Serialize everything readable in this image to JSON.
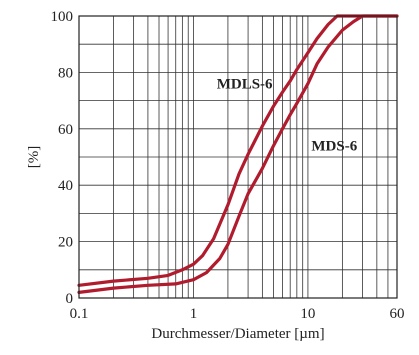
{
  "chart_data": {
    "type": "line",
    "title": "",
    "xlabel": "Durchmesser/Diameter  [µm]",
    "ylabel": "[%]",
    "x_scale": "log",
    "xlim": [
      0.1,
      60
    ],
    "ylim": [
      0,
      100
    ],
    "grid": true,
    "x_tick_labels": [
      {
        "value": 0.1,
        "label": "0.1"
      },
      {
        "value": 1,
        "label": "1"
      },
      {
        "value": 10,
        "label": "10"
      },
      {
        "value": 60,
        "label": "60"
      }
    ],
    "y_tick_labels": [
      {
        "value": 0,
        "label": "0"
      },
      {
        "value": 20,
        "label": "20"
      },
      {
        "value": 40,
        "label": "40"
      },
      {
        "value": 60,
        "label": "60"
      },
      {
        "value": 80,
        "label": "80"
      },
      {
        "value": 100,
        "label": "100"
      }
    ],
    "series": [
      {
        "name": "MDLS-6",
        "color": "#b01c2e",
        "points": [
          [
            0.1,
            4.5
          ],
          [
            0.2,
            6
          ],
          [
            0.4,
            7
          ],
          [
            0.6,
            8
          ],
          [
            0.8,
            10
          ],
          [
            1.0,
            12
          ],
          [
            1.2,
            15
          ],
          [
            1.5,
            21
          ],
          [
            2.0,
            33
          ],
          [
            2.5,
            44
          ],
          [
            3.0,
            51
          ],
          [
            4.0,
            61
          ],
          [
            5.0,
            68
          ],
          [
            6.0,
            73
          ],
          [
            7.0,
            77
          ],
          [
            8.0,
            81
          ],
          [
            10.0,
            87
          ],
          [
            12.0,
            92
          ],
          [
            15.0,
            97
          ],
          [
            18.0,
            100
          ],
          [
            25.0,
            100
          ],
          [
            60.0,
            100
          ]
        ]
      },
      {
        "name": "MDS-6",
        "color": "#b01c2e",
        "points": [
          [
            0.1,
            2
          ],
          [
            0.2,
            3.5
          ],
          [
            0.4,
            4.5
          ],
          [
            0.7,
            5
          ],
          [
            1.0,
            6.5
          ],
          [
            1.3,
            9
          ],
          [
            1.7,
            14
          ],
          [
            2.0,
            19
          ],
          [
            2.5,
            29
          ],
          [
            3.0,
            37
          ],
          [
            4.0,
            46
          ],
          [
            5.0,
            54
          ],
          [
            6.0,
            60
          ],
          [
            7.0,
            65
          ],
          [
            8.0,
            69
          ],
          [
            10.0,
            76
          ],
          [
            12.0,
            83
          ],
          [
            15.0,
            89
          ],
          [
            20.0,
            95
          ],
          [
            25.0,
            98
          ],
          [
            30.0,
            100
          ],
          [
            40.0,
            100
          ],
          [
            60.0,
            100
          ]
        ]
      }
    ],
    "annotations": [
      {
        "text": "MDLS-6",
        "x": 2.8,
        "y": 76
      },
      {
        "text": "MDS-6",
        "x": 17,
        "y": 54
      }
    ]
  }
}
